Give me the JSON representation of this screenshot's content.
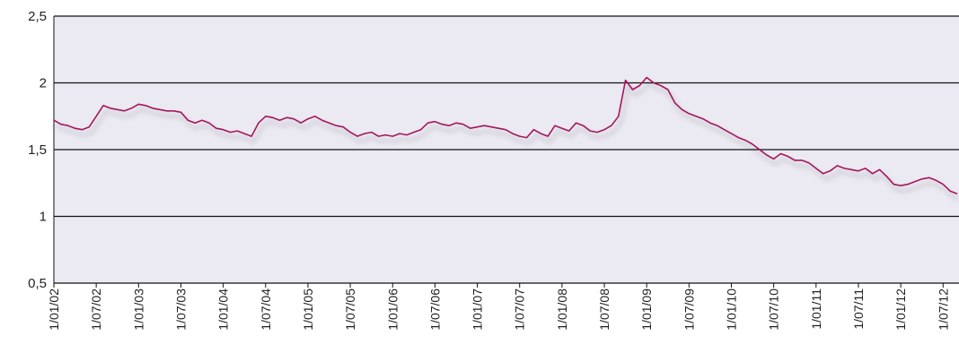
{
  "chart_data": {
    "type": "line",
    "x": [
      "1/01/02",
      "1/02/02",
      "1/03/02",
      "1/04/02",
      "1/05/02",
      "1/06/02",
      "1/07/02",
      "1/08/02",
      "1/09/02",
      "1/10/02",
      "1/11/02",
      "1/12/02",
      "1/01/03",
      "1/02/03",
      "1/03/03",
      "1/04/03",
      "1/05/03",
      "1/06/03",
      "1/07/03",
      "1/08/03",
      "1/09/03",
      "1/10/03",
      "1/11/03",
      "1/12/03",
      "1/01/04",
      "1/02/04",
      "1/03/04",
      "1/04/04",
      "1/05/04",
      "1/06/04",
      "1/07/04",
      "1/08/04",
      "1/09/04",
      "1/10/04",
      "1/11/04",
      "1/12/04",
      "1/01/05",
      "1/02/05",
      "1/03/05",
      "1/04/05",
      "1/05/05",
      "1/06/05",
      "1/07/05",
      "1/08/05",
      "1/09/05",
      "1/10/05",
      "1/11/05",
      "1/12/05",
      "1/01/06",
      "1/02/06",
      "1/03/06",
      "1/04/06",
      "1/05/06",
      "1/06/06",
      "1/07/06",
      "1/08/06",
      "1/09/06",
      "1/10/06",
      "1/11/06",
      "1/12/06",
      "1/01/07",
      "1/02/07",
      "1/03/07",
      "1/04/07",
      "1/05/07",
      "1/06/07",
      "1/07/07",
      "1/08/07",
      "1/09/07",
      "1/10/07",
      "1/11/07",
      "1/12/07",
      "1/01/08",
      "1/02/08",
      "1/03/08",
      "1/04/08",
      "1/05/08",
      "1/06/08",
      "1/07/08",
      "1/08/08",
      "1/09/08",
      "1/10/08",
      "1/11/08",
      "1/12/08",
      "1/01/09",
      "1/02/09",
      "1/03/09",
      "1/04/09",
      "1/05/09",
      "1/06/09",
      "1/07/09",
      "1/08/09",
      "1/09/09",
      "1/10/09",
      "1/11/09",
      "1/12/09",
      "1/01/10",
      "1/02/10",
      "1/03/10",
      "1/04/10",
      "1/05/10",
      "1/06/10",
      "1/07/10",
      "1/08/10",
      "1/09/10",
      "1/10/10",
      "1/11/10",
      "1/12/10",
      "1/01/11",
      "1/02/11",
      "1/03/11",
      "1/04/11",
      "1/05/11",
      "1/06/11",
      "1/07/11",
      "1/08/11",
      "1/09/11",
      "1/10/11",
      "1/11/11",
      "1/12/11",
      "1/01/12",
      "1/02/12",
      "1/03/12",
      "1/04/12",
      "1/05/12",
      "1/06/12",
      "1/07/12",
      "1/08/12",
      "1/09/12"
    ],
    "series": [
      {
        "color": "#a3175c",
        "values": [
          1.72,
          1.69,
          1.68,
          1.66,
          1.65,
          1.67,
          1.75,
          1.83,
          1.81,
          1.8,
          1.79,
          1.81,
          1.84,
          1.83,
          1.81,
          1.8,
          1.79,
          1.79,
          1.78,
          1.72,
          1.7,
          1.72,
          1.7,
          1.66,
          1.65,
          1.63,
          1.64,
          1.62,
          1.6,
          1.7,
          1.75,
          1.74,
          1.72,
          1.74,
          1.73,
          1.7,
          1.73,
          1.75,
          1.72,
          1.7,
          1.68,
          1.67,
          1.63,
          1.6,
          1.62,
          1.63,
          1.6,
          1.61,
          1.6,
          1.62,
          1.61,
          1.63,
          1.65,
          1.7,
          1.71,
          1.69,
          1.68,
          1.7,
          1.69,
          1.66,
          1.67,
          1.68,
          1.67,
          1.66,
          1.65,
          1.62,
          1.6,
          1.59,
          1.65,
          1.62,
          1.6,
          1.68,
          1.66,
          1.64,
          1.7,
          1.68,
          1.64,
          1.63,
          1.65,
          1.68,
          1.75,
          2.02,
          1.95,
          1.98,
          2.04,
          2.0,
          1.98,
          1.95,
          1.85,
          1.8,
          1.77,
          1.75,
          1.73,
          1.7,
          1.68,
          1.65,
          1.62,
          1.59,
          1.57,
          1.54,
          1.5,
          1.46,
          1.43,
          1.47,
          1.45,
          1.42,
          1.42,
          1.4,
          1.36,
          1.32,
          1.34,
          1.38,
          1.36,
          1.35,
          1.34,
          1.36,
          1.32,
          1.35,
          1.3,
          1.24,
          1.23,
          1.24,
          1.26,
          1.28,
          1.29,
          1.27,
          1.24,
          1.19,
          1.17
        ]
      }
    ],
    "xlim": [
      "1/01/02",
      "1/09/12"
    ],
    "xticks": [
      "1/01/02",
      "1/07/02",
      "1/01/03",
      "1/07/03",
      "1/01/04",
      "1/07/04",
      "1/01/05",
      "1/07/05",
      "1/01/06",
      "1/07/06",
      "1/01/07",
      "1/07/07",
      "1/01/08",
      "1/07/08",
      "1/01/09",
      "1/07/09",
      "1/01/10",
      "1/07/10",
      "1/01/11",
      "1/07/11",
      "1/01/12",
      "1/07/12"
    ],
    "ylim": [
      0.5,
      2.5
    ],
    "yticks": [
      {
        "value": 0.5,
        "label": "0,5"
      },
      1,
      {
        "value": 1.5,
        "label": "1,5"
      },
      2,
      {
        "value": 2.5,
        "label": "2,5"
      }
    ],
    "grid": true
  }
}
